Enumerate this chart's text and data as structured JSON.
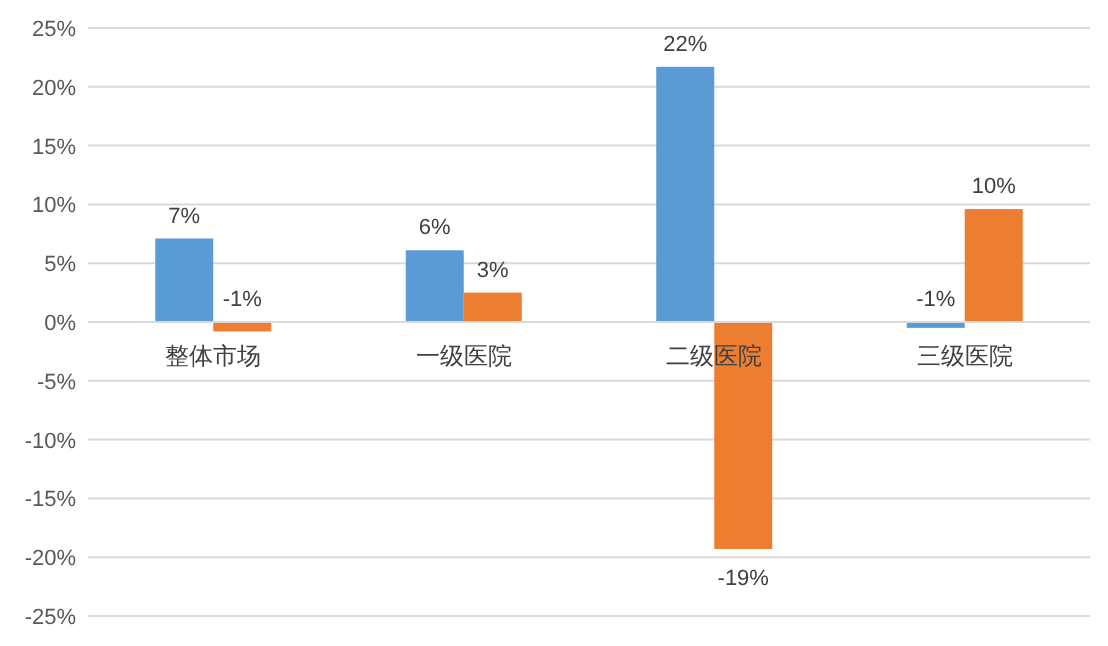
{
  "chart_data": {
    "type": "bar",
    "categories": [
      "整体市场",
      "一级医院",
      "二级医院",
      "三级医院"
    ],
    "series": [
      {
        "color": "#5b9bd5",
        "values": [
          7.1,
          6.1,
          21.7,
          -0.5
        ],
        "value_labels": [
          "7%",
          "6%",
          "22%",
          "-1%"
        ]
      },
      {
        "color": "#ed7d31",
        "values": [
          -0.8,
          2.5,
          -19.3,
          9.6
        ],
        "value_labels": [
          "-1%",
          "3%",
          "-19%",
          "10%"
        ]
      }
    ],
    "ylim": [
      -25,
      25
    ],
    "yticks": [
      {
        "value": -25,
        "label": "-25%"
      },
      {
        "value": -20,
        "label": "-20%"
      },
      {
        "value": -15,
        "label": "-15%"
      },
      {
        "value": -10,
        "label": "-10%"
      },
      {
        "value": -5,
        "label": "-5%"
      },
      {
        "value": 0,
        "label": "0%"
      },
      {
        "value": 5,
        "label": "5%"
      },
      {
        "value": 10,
        "label": "10%"
      },
      {
        "value": 15,
        "label": "15%"
      },
      {
        "value": 20,
        "label": "20%"
      },
      {
        "value": 25,
        "label": "25%"
      }
    ],
    "grid": "y"
  }
}
